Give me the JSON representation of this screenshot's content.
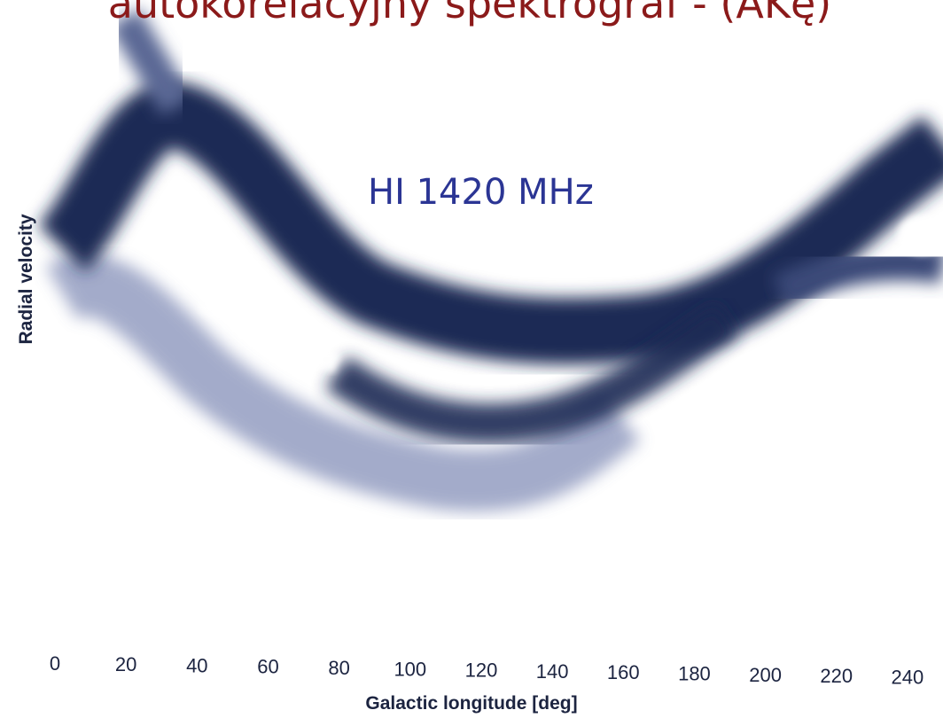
{
  "chart_data": {
    "type": "image",
    "title": "autokorelacyjny spektrograf  - (AKę)",
    "annotation": "HI  1420 MHz",
    "xlabel": "Galactic longitude [deg]",
    "ylabel": "Radial velocity",
    "xlim": [
      0,
      250
    ],
    "xticks": [
      0,
      20,
      40,
      60,
      80,
      100,
      120,
      140,
      160,
      180,
      200,
      220,
      240
    ]
  }
}
